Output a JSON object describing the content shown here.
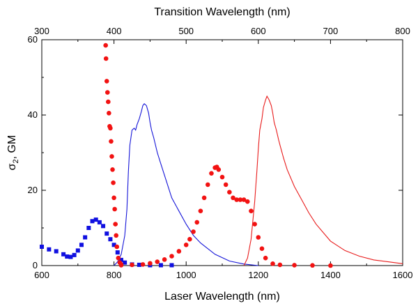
{
  "chart_data": {
    "type": "scatter",
    "xlabel": "Laser Wavelength (nm)",
    "x2label": "Transition Wavelength (nm)",
    "ylabel_symbol": "σ",
    "ylabel_sub": "2",
    "ylabel_rest": ", GM",
    "xlim": [
      600,
      1600
    ],
    "x2lim": [
      300,
      800
    ],
    "ylim": [
      0,
      60
    ],
    "x_ticks": [
      600,
      800,
      1000,
      1200,
      1400,
      1600
    ],
    "x2_ticks": [
      300,
      400,
      500,
      600,
      700,
      800
    ],
    "y_ticks": [
      0,
      20,
      40,
      60
    ],
    "grid": false,
    "series": [
      {
        "name": "blue two-photon (squares)",
        "style": "square-markers",
        "color": "#1010e0",
        "x": [
          600,
          620,
          640,
          660,
          670,
          680,
          690,
          700,
          710,
          720,
          730,
          740,
          750,
          760,
          770,
          780,
          790,
          800,
          810,
          820,
          830,
          850,
          870,
          900,
          930,
          960
        ],
        "y": [
          5,
          4.3,
          3.8,
          3,
          2.4,
          2.3,
          2.8,
          4,
          5.5,
          7.5,
          10,
          11.8,
          12.2,
          11.5,
          10.5,
          8.5,
          7,
          5.5,
          3.5,
          1.5,
          0.8,
          0.3,
          0.2,
          0.1,
          0.1,
          0.1
        ]
      },
      {
        "name": "blue one-photon (line)",
        "style": "line",
        "color": "#1414d8",
        "x": [
          400,
          405,
          410,
          415,
          418,
          420,
          422,
          425,
          428,
          430,
          432,
          435,
          438,
          440,
          442,
          445,
          448,
          450,
          452,
          455,
          460,
          465,
          470,
          475,
          480,
          490,
          500,
          510,
          520,
          540,
          560,
          580,
          600
        ],
        "y": [
          0,
          1,
          3,
          8,
          15,
          25,
          32,
          36,
          36.5,
          36,
          37.5,
          39,
          41,
          42.5,
          43,
          42.5,
          40.5,
          38,
          36,
          34,
          30,
          27,
          24,
          21,
          18,
          14.5,
          11,
          8,
          6,
          3,
          1.2,
          0.4,
          0
        ]
      },
      {
        "name": "red two-photon (circles, steep)",
        "style": "circle-markers",
        "color": "#f21212",
        "x": [
          777,
          778,
          780,
          782,
          784,
          786,
          788,
          790,
          792,
          794,
          796,
          798,
          800,
          802,
          804,
          806,
          808,
          812,
          816,
          820
        ],
        "y": [
          58.5,
          55,
          49,
          46,
          43.5,
          40.5,
          37,
          36.5,
          33,
          29,
          25.5,
          22,
          18,
          15,
          11,
          8,
          5,
          2,
          0.8,
          0.3
        ]
      },
      {
        "name": "red two-photon (circles, band)",
        "style": "circle-markers",
        "color": "#f21212",
        "x": [
          820,
          850,
          880,
          900,
          920,
          940,
          960,
          980,
          1000,
          1010,
          1020,
          1030,
          1040,
          1050,
          1060,
          1070,
          1080,
          1085,
          1090,
          1100,
          1110,
          1120,
          1130,
          1140,
          1150,
          1160,
          1170,
          1180,
          1190,
          1200,
          1210,
          1220,
          1240,
          1260,
          1300,
          1350,
          1400
        ],
        "y": [
          0.1,
          0.2,
          0.3,
          0.6,
          1,
          1.6,
          2.5,
          3.8,
          5.5,
          7,
          9,
          11.5,
          14.5,
          18,
          21.5,
          24.5,
          26,
          26.2,
          25.5,
          23.5,
          21.5,
          19.5,
          18,
          17.5,
          17.5,
          17.5,
          17,
          14.5,
          11,
          7.5,
          4.5,
          2,
          0.5,
          0.2,
          0.1,
          0.05,
          0
        ]
      },
      {
        "name": "red one-photon (line)",
        "style": "line",
        "color": "#e81a1a",
        "x": [
          580,
          585,
          590,
          595,
          598,
          600,
          602,
          605,
          607,
          610,
          612,
          615,
          618,
          620,
          622,
          625,
          628,
          630,
          635,
          640,
          650,
          660,
          670,
          680,
          700,
          720,
          740,
          760,
          780,
          800
        ],
        "y": [
          0,
          2,
          7,
          17,
          25,
          31,
          36,
          39,
          42,
          44,
          45,
          44,
          42.5,
          40.5,
          38,
          36,
          33.5,
          32,
          28.5,
          25.5,
          21,
          17.5,
          14,
          11,
          6.5,
          4,
          2.5,
          1.5,
          1,
          0.5
        ]
      }
    ]
  }
}
